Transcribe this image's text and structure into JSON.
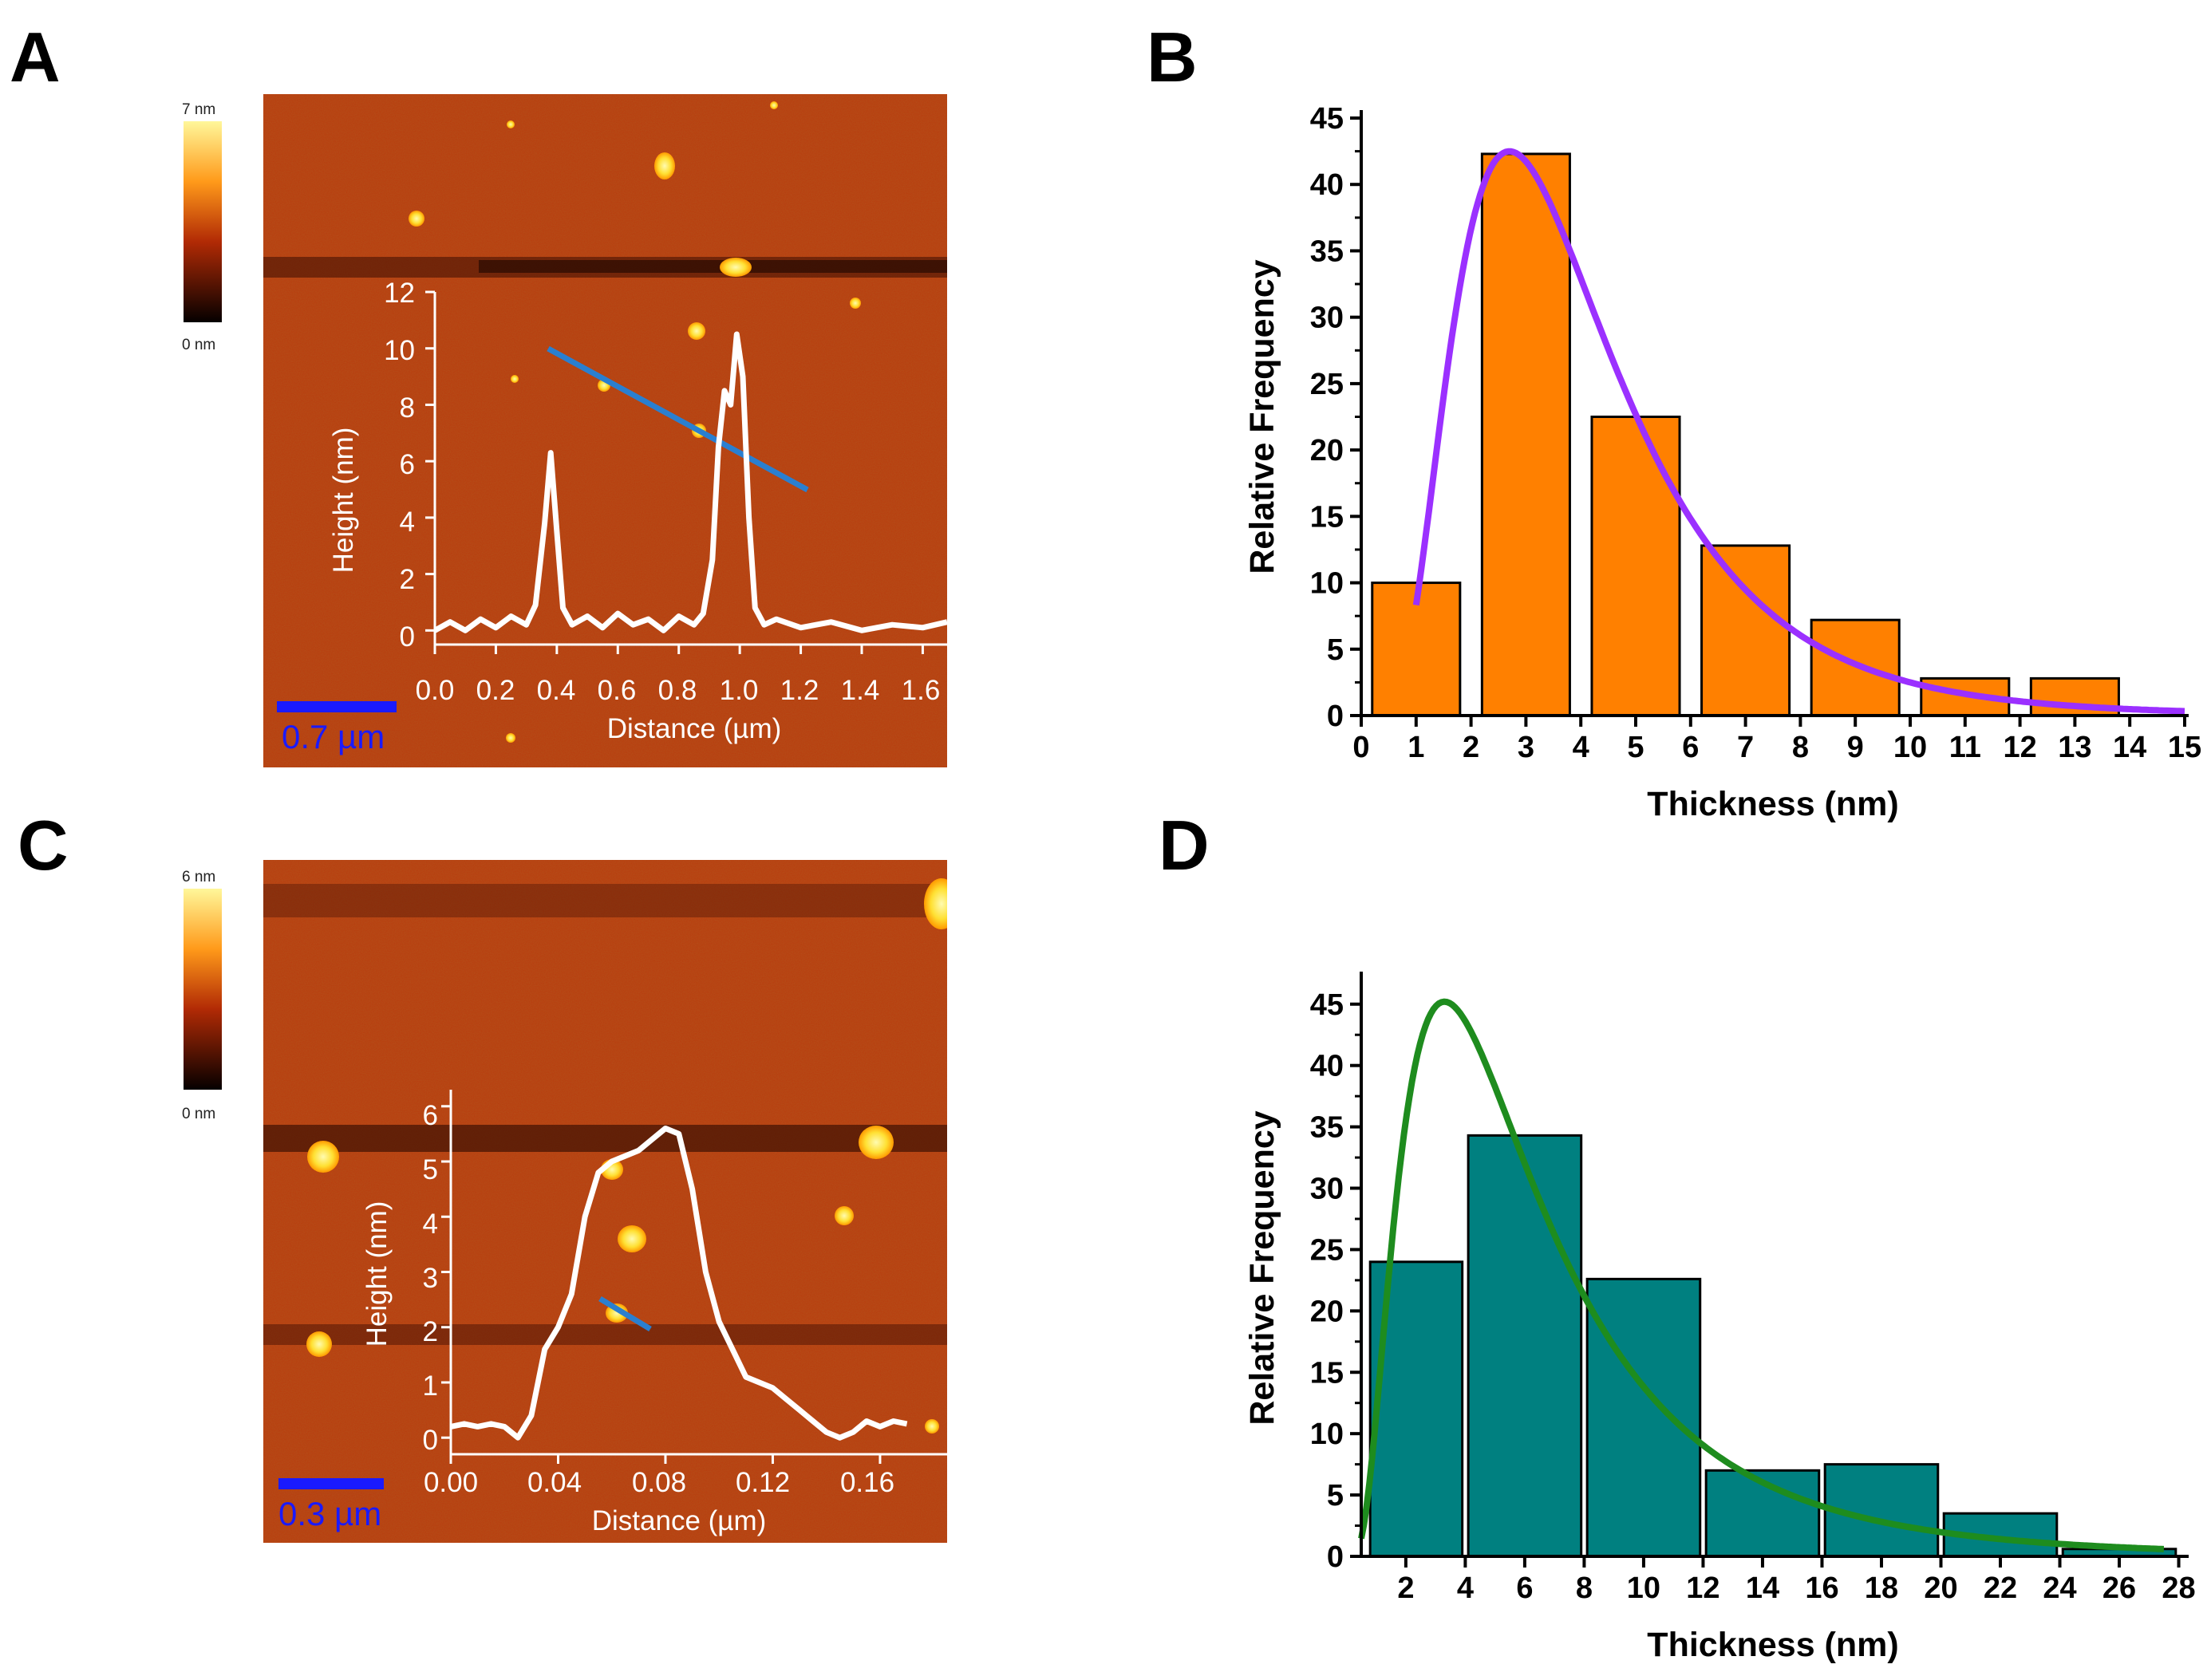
{
  "panels": {
    "A": {
      "letter": "A",
      "colorbar": {
        "max_label": "7 nm",
        "min_label": "0 nm"
      },
      "scale_bar_label": "0.7 µm",
      "inset": {
        "xlabel": "Distance (µm)",
        "ylabel": "Height (nm)",
        "x_ticks": [
          "0.0",
          "0.2",
          "0.4",
          "0.6",
          "0.8",
          "1.0",
          "1.2",
          "1.4",
          "1.6"
        ],
        "y_ticks": [
          "0",
          "2",
          "4",
          "6",
          "8",
          "10",
          "12"
        ]
      }
    },
    "B": {
      "letter": "B"
    },
    "C": {
      "letter": "C",
      "colorbar": {
        "max_label": "6 nm",
        "min_label": "0 nm"
      },
      "scale_bar_label": "0.3 µm",
      "inset": {
        "xlabel": "Distance (µm)",
        "ylabel": "Height (nm)",
        "x_ticks": [
          "0.00",
          "0.04",
          "0.08",
          "0.12",
          "0.16"
        ],
        "y_ticks": [
          "0",
          "1",
          "2",
          "3",
          "4",
          "5",
          "6"
        ]
      }
    },
    "D": {
      "letter": "D"
    }
  },
  "colors": {
    "afm_background": "#b83a0c",
    "orange_bar": "#ff8000",
    "teal_bar": "#008080",
    "purple_curve": "#9b30ff",
    "green_curve": "#1e8c1e",
    "profile_line": "#2a7fd0",
    "scale_bar": "#1a1aff"
  },
  "chart_data": [
    {
      "panel": "A-inset",
      "type": "line",
      "xlabel": "Distance (µm)",
      "ylabel": "Height (nm)",
      "xlim": [
        0.0,
        1.68
      ],
      "ylim": [
        -0.5,
        12
      ],
      "series": [
        {
          "name": "height profile",
          "x": [
            0.0,
            0.05,
            0.1,
            0.15,
            0.2,
            0.25,
            0.3,
            0.33,
            0.36,
            0.38,
            0.4,
            0.42,
            0.45,
            0.5,
            0.55,
            0.6,
            0.65,
            0.7,
            0.75,
            0.8,
            0.85,
            0.88,
            0.91,
            0.93,
            0.95,
            0.97,
            0.99,
            1.01,
            1.03,
            1.05,
            1.08,
            1.12,
            1.2,
            1.3,
            1.4,
            1.5,
            1.6,
            1.68
          ],
          "y": [
            0.0,
            0.3,
            0.0,
            0.4,
            0.1,
            0.5,
            0.2,
            0.9,
            3.8,
            6.3,
            3.5,
            0.8,
            0.2,
            0.5,
            0.1,
            0.6,
            0.2,
            0.4,
            0.0,
            0.5,
            0.2,
            0.6,
            2.5,
            6.5,
            8.5,
            8.0,
            10.5,
            9.0,
            4.0,
            0.8,
            0.2,
            0.4,
            0.1,
            0.3,
            0.0,
            0.2,
            0.1,
            0.3
          ]
        }
      ]
    },
    {
      "panel": "B",
      "type": "bar",
      "xlabel": "Thickness (nm)",
      "ylabel": "Relative Frequency",
      "xlim": [
        0,
        15
      ],
      "ylim": [
        0,
        45
      ],
      "x_ticks": [
        0,
        1,
        2,
        3,
        4,
        5,
        6,
        7,
        8,
        9,
        10,
        11,
        12,
        13,
        14,
        15
      ],
      "y_ticks": [
        0,
        5,
        10,
        15,
        20,
        25,
        30,
        35,
        40,
        45
      ],
      "bars": [
        {
          "from": 0.2,
          "to": 1.8,
          "value": 10
        },
        {
          "from": 2.2,
          "to": 3.8,
          "value": 42.3
        },
        {
          "from": 4.2,
          "to": 5.8,
          "value": 22.5
        },
        {
          "from": 6.2,
          "to": 7.8,
          "value": 12.8
        },
        {
          "from": 8.2,
          "to": 9.8,
          "value": 7.2
        },
        {
          "from": 10.2,
          "to": 11.8,
          "value": 2.8
        },
        {
          "from": 12.2,
          "to": 13.8,
          "value": 2.8
        }
      ],
      "fit_curve": {
        "type": "lognormal",
        "peak_x": 2.7,
        "peak_y": 42.5,
        "sigma": 0.55,
        "x_start": 1.0,
        "x_end": 15.0
      }
    },
    {
      "panel": "C-inset",
      "type": "line",
      "xlabel": "Distance (µm)",
      "ylabel": "Height (nm)",
      "xlim": [
        0.0,
        0.185
      ],
      "ylim": [
        -0.3,
        6.3
      ],
      "series": [
        {
          "name": "height profile",
          "x": [
            0.0,
            0.005,
            0.01,
            0.015,
            0.02,
            0.025,
            0.03,
            0.035,
            0.04,
            0.045,
            0.05,
            0.055,
            0.06,
            0.065,
            0.07,
            0.075,
            0.08,
            0.085,
            0.09,
            0.095,
            0.1,
            0.105,
            0.11,
            0.115,
            0.12,
            0.125,
            0.13,
            0.135,
            0.14,
            0.145,
            0.15,
            0.155,
            0.16,
            0.165,
            0.17
          ],
          "y": [
            0.2,
            0.25,
            0.2,
            0.25,
            0.2,
            0.0,
            0.4,
            1.6,
            2.0,
            2.6,
            4.0,
            4.8,
            5.0,
            5.1,
            5.2,
            5.4,
            5.6,
            5.5,
            4.5,
            3.0,
            2.1,
            1.6,
            1.1,
            1.0,
            0.9,
            0.7,
            0.5,
            0.3,
            0.1,
            0.0,
            0.1,
            0.3,
            0.2,
            0.3,
            0.25
          ]
        }
      ]
    },
    {
      "panel": "D",
      "type": "bar",
      "xlabel": "Thickness (nm)",
      "ylabel": "Relative Frequency",
      "xlim": [
        0.5,
        28.2
      ],
      "ylim": [
        0,
        47
      ],
      "x_ticks": [
        2,
        4,
        6,
        8,
        10,
        12,
        14,
        16,
        18,
        20,
        22,
        24,
        26,
        28
      ],
      "y_ticks": [
        0,
        5,
        10,
        15,
        20,
        25,
        30,
        35,
        40,
        45
      ],
      "bars": [
        {
          "from": 0.8,
          "to": 3.9,
          "value": 24
        },
        {
          "from": 4.1,
          "to": 7.9,
          "value": 34.3
        },
        {
          "from": 8.1,
          "to": 11.9,
          "value": 22.6
        },
        {
          "from": 12.1,
          "to": 15.9,
          "value": 7
        },
        {
          "from": 16.1,
          "to": 19.9,
          "value": 7.5
        },
        {
          "from": 20.1,
          "to": 23.9,
          "value": 3.5
        },
        {
          "from": 24.1,
          "to": 27.9,
          "value": 0.6
        }
      ],
      "fit_curve": {
        "type": "lognormal",
        "peak_x": 3.3,
        "peak_y": 45.2,
        "sigma": 0.72,
        "x_start": 0.5,
        "x_end": 27.5
      }
    }
  ]
}
